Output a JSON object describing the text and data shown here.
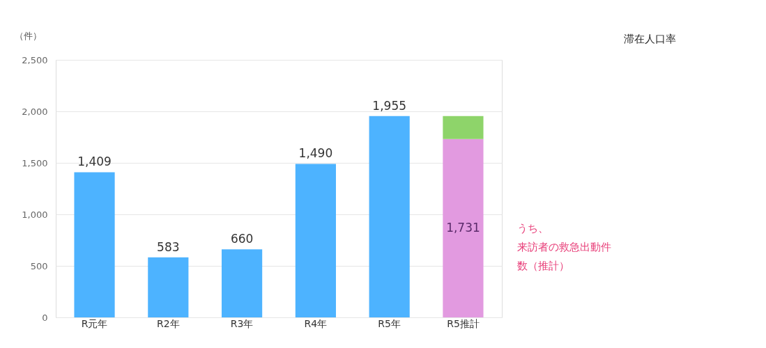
{
  "chart_data": {
    "type": "bar",
    "stacked": true,
    "ylabel": "（件）",
    "categories": [
      "R元年",
      "R2年",
      "R3年",
      "R4年",
      "R5年",
      "R5推計"
    ],
    "series": [
      {
        "color": "#4db3ff",
        "values": [
          1409,
          583,
          660,
          1490,
          1955,
          null
        ],
        "value_labels": [
          "1,409",
          "583",
          "660",
          "1,490",
          "1,955",
          null
        ]
      },
      {
        "name": "うち、来訪者の救急出動件数（推計）",
        "color": "#e29ae0",
        "values": [
          null,
          null,
          null,
          null,
          null,
          1731
        ],
        "value_labels": [
          null,
          null,
          null,
          null,
          null,
          "1,731"
        ]
      },
      {
        "color": "#8ed46a",
        "values": [
          null,
          null,
          null,
          null,
          null,
          224
        ]
      }
    ],
    "ylim": [
      0,
      2500
    ],
    "yticks": [
      0,
      500,
      {
        "value": 1000,
        "label": "1,000"
      },
      {
        "value": 1500,
        "label": "1,500"
      },
      {
        "value": 2000,
        "label": "2,000"
      },
      {
        "value": 2500,
        "label": "2,500"
      }
    ],
    "grid": "y",
    "legend": false,
    "annotations": [
      "滞在人口率"
    ]
  }
}
